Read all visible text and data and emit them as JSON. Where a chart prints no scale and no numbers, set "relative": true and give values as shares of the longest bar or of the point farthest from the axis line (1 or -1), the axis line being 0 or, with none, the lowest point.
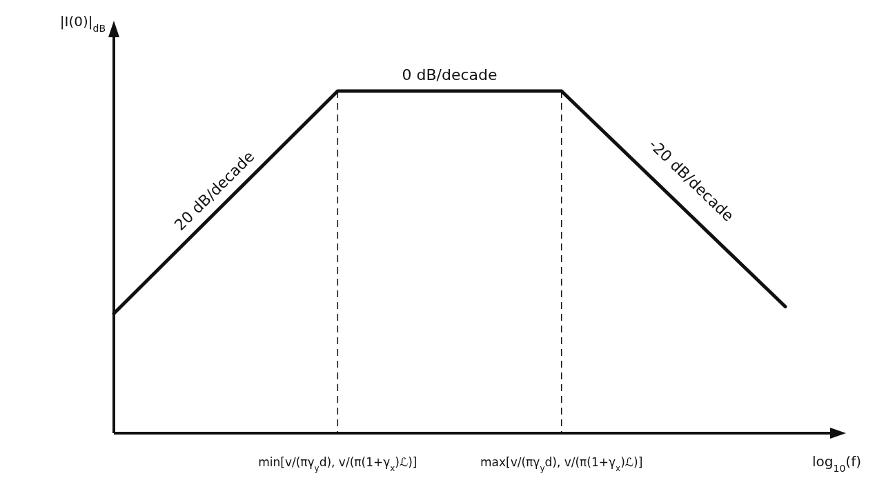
{
  "chart_data": {
    "type": "line",
    "relative": true,
    "ylabel": "|I(0)|$_{dB}$",
    "xlabel": "log$_{10}$(f)",
    "categories": [
      null,
      "min[v/(πγ$_{y}$d), v/(π(1+γ$_{x}$)ℒ)]",
      "max[v/(πγ$_{y}$d), v/(π(1+γ$_{x}$)ℒ)]",
      null
    ],
    "series": [
      {
        "color": "#111111",
        "values": [
          0.35,
          1,
          1,
          0.37
        ]
      }
    ],
    "ref_lines": [
      {
        "axis": "x",
        "value": "min[v/(πγ$_{y}$d), v/(π(1+γ$_{x}$)ℒ)]",
        "line_style": "dashed"
      },
      {
        "axis": "x",
        "value": "max[v/(πγ$_{y}$d), v/(π(1+γ$_{x}$)ℒ)]",
        "line_style": "dashed"
      }
    ],
    "annotations": [
      "20 dB/decade",
      "0 dB/decade",
      "-20 dB/decade"
    ],
    "marker": "none",
    "line_style": "solid"
  }
}
